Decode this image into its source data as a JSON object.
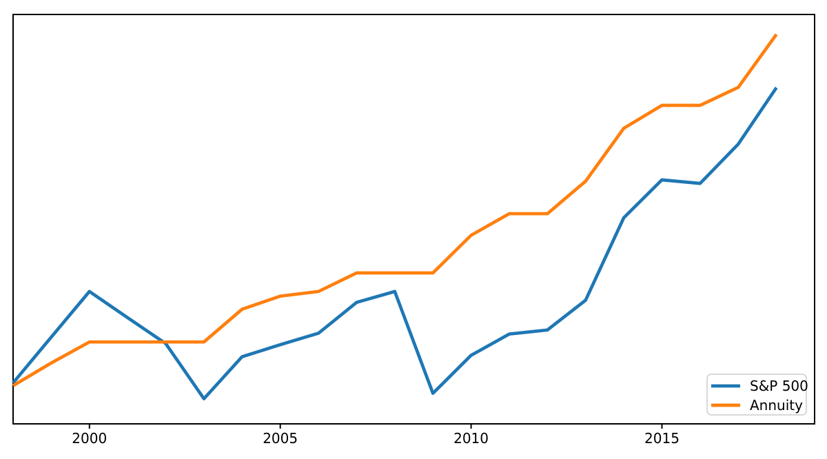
{
  "figure": {
    "background": "#ffffff",
    "frame_color": "#000000"
  },
  "chart_data": {
    "type": "line",
    "title": "",
    "xlabel": "",
    "ylabel": "",
    "x": [
      1998,
      1999,
      2000,
      2001,
      2002,
      2003,
      2004,
      2005,
      2006,
      2007,
      2008,
      2009,
      2010,
      2011,
      2012,
      2013,
      2014,
      2015,
      2016,
      2017,
      2018
    ],
    "series": [
      {
        "id": "sp500",
        "name": "S&P 500",
        "color": "#1f77b4",
        "values": [
          1.0,
          1.168,
          1.335,
          1.239,
          1.144,
          0.942,
          1.096,
          1.14,
          1.182,
          1.295,
          1.335,
          0.962,
          1.101,
          1.179,
          1.194,
          1.303,
          1.605,
          1.744,
          1.731,
          1.875,
          2.082
        ]
      },
      {
        "id": "annuity",
        "name": "Annuity",
        "color": "#ff7f0e",
        "values": [
          0.99,
          1.073,
          1.15,
          1.15,
          1.15,
          1.15,
          1.27,
          1.318,
          1.335,
          1.403,
          1.403,
          1.403,
          1.541,
          1.62,
          1.62,
          1.739,
          1.933,
          2.017,
          2.017,
          2.083,
          2.277
        ]
      }
    ],
    "xlim": [
      1998,
      2019
    ],
    "ylim": [
      0.85,
      2.35
    ],
    "xticks": [
      2000,
      2005,
      2010,
      2015
    ],
    "yticks": [],
    "grid": false,
    "line_width": 4.7,
    "legend": {
      "position": "lower right",
      "entries": [
        "S&P 500",
        "Annuity"
      ],
      "border_color": "#cccccc",
      "background": "#ffffff"
    }
  }
}
